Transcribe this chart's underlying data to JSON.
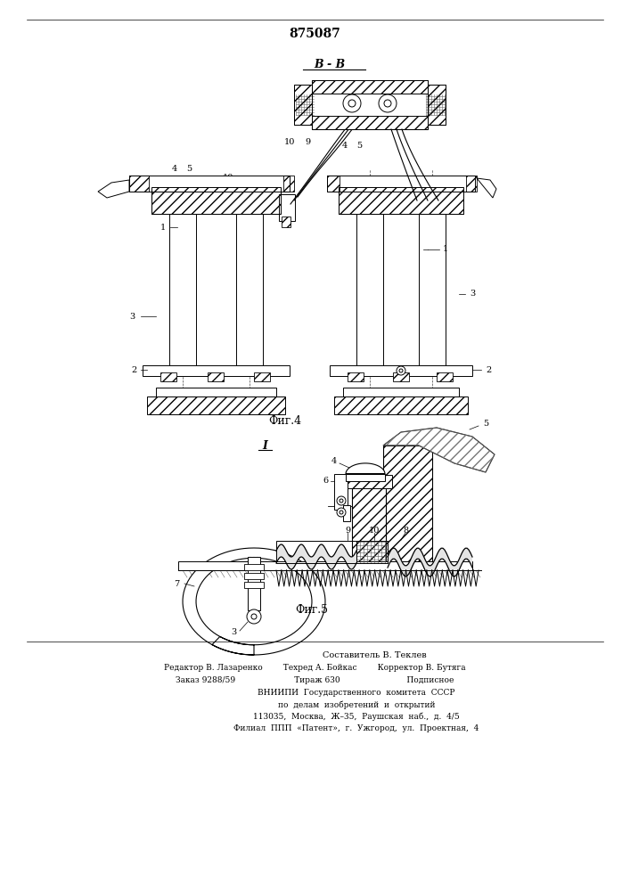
{
  "patent_number": "875087",
  "fig4_label": "Фиг.4",
  "fig5_label": "Фиг.5",
  "section_label": "В - В",
  "section_label2": "I",
  "footer_lines": [
    "Составитель В. Теклев",
    "Редактор В. Лазаренко        Техред А. Бойкас        Корректор В. Бутяга",
    "Заказ 9288/59                       Тираж 630                          Подписное",
    "ВНИИПИ  Государственного  комитета  СССР",
    "по  делам  изобретений  и  открытий",
    "113035,  Москва,  Ж–35,  Раушская  наб.,  д.  4/5",
    "Филиал  ППП  «Патент»,  г.  Ужгород,  ул.  Проектная,  4"
  ],
  "bg_color": "#ffffff",
  "line_color": "#000000"
}
